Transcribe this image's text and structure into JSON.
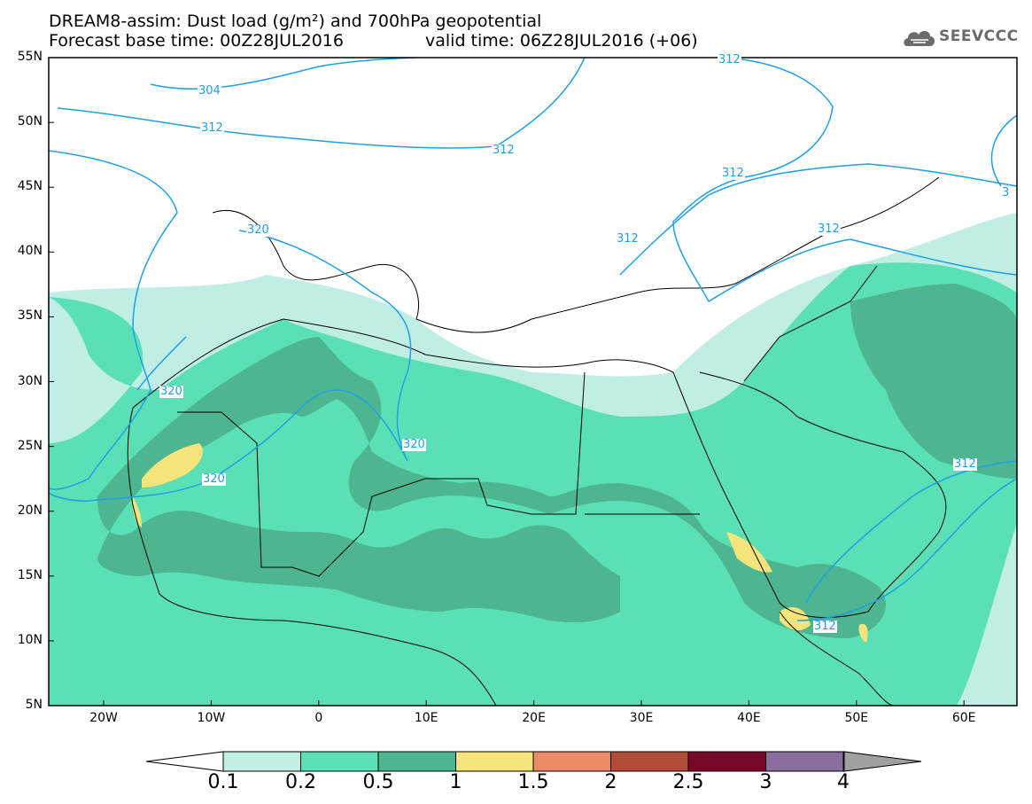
{
  "header": {
    "title_line1": "DREAM8-assim: Dust load (g/m²) and 700hPa geopotential",
    "title_line2a": "Forecast base time: 00Z28JUL2016",
    "title_line2b": "valid time: 06Z28JUL2016 (+06)"
  },
  "logo": {
    "text": "SEEVCCC",
    "icon": "cloud-icon"
  },
  "axes": {
    "lat_labels": [
      "55N",
      "50N",
      "45N",
      "40N",
      "35N",
      "30N",
      "25N",
      "20N",
      "15N",
      "10N",
      "5N"
    ],
    "lon_labels": [
      "20W",
      "10W",
      "0",
      "10E",
      "20E",
      "30E",
      "40E",
      "50E",
      "60E"
    ]
  },
  "contours": {
    "labels": [
      "304",
      "312",
      "312",
      "312",
      "312",
      "312",
      "312",
      "320",
      "320",
      "320",
      "320",
      "312",
      "312",
      "3"
    ]
  },
  "colorbar": {
    "labels": [
      "0.1",
      "0.2",
      "0.5",
      "1",
      "1.5",
      "2",
      "2.5",
      "3",
      "4"
    ],
    "colors": [
      "#c0eee4",
      "#5be0b6",
      "#4db590",
      "#f5e47a",
      "#eb8c64",
      "#b04c38",
      "#780828",
      "#8a6ea0",
      "#a0a0a0"
    ]
  },
  "colors": {
    "dust_light": "#c0eee4",
    "dust_mid": "#5be0b6",
    "dust_dark": "#4db590",
    "dust_yellow": "#f5e47a",
    "contour": "#1f9fe6"
  }
}
